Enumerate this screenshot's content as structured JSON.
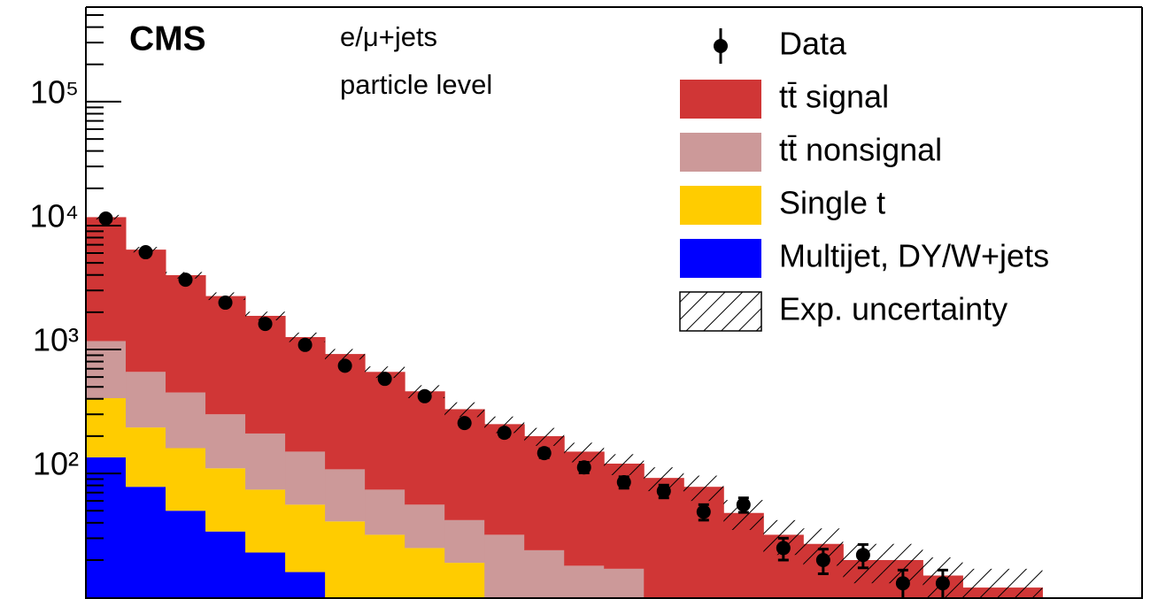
{
  "chart_data": {
    "type": "stacked_histogram",
    "experiment": "CMS",
    "channel": "e/μ+jets",
    "level": "particle level",
    "log_y": true,
    "ylim": [
      9.7,
      580000
    ],
    "yticks": [
      {
        "value": 100,
        "label": "10²"
      },
      {
        "value": 1000,
        "label": "10³"
      },
      {
        "value": 10000,
        "label": "10⁴"
      },
      {
        "value": 100000,
        "label": "10⁵"
      }
    ],
    "minor_yticks": [
      20,
      30,
      40,
      50,
      60,
      70,
      80,
      90,
      200,
      300,
      400,
      500,
      600,
      700,
      800,
      900,
      2000,
      3000,
      4000,
      5000,
      6000,
      7000,
      8000,
      9000,
      20000,
      30000,
      40000,
      50000,
      60000,
      70000,
      80000,
      90000,
      200000,
      300000,
      400000,
      500000
    ],
    "categories": [
      null,
      null,
      null,
      null,
      null,
      null,
      null,
      null,
      null,
      null,
      null,
      null,
      null,
      null,
      null,
      null,
      null,
      null,
      null,
      null,
      null,
      null,
      null,
      null
    ],
    "series": [
      {
        "name": "Multijet, DY/W+jets",
        "color": "#0000ff",
        "values": [
          135,
          78,
          50,
          34,
          23,
          16,
          10,
          null,
          null,
          null,
          null,
          null,
          null,
          null,
          null,
          null,
          null,
          null,
          null,
          null,
          null,
          null,
          null,
          null
        ]
      },
      {
        "name": "Single t",
        "color": "#ffcc00",
        "values": [
          270,
          157,
          110,
          76,
          51,
          40,
          31,
          32,
          25,
          19,
          null,
          null,
          null,
          null,
          null,
          null,
          null,
          null,
          null,
          null,
          null,
          null,
          null,
          null
        ]
      },
      {
        "name": "tt̄ nonsignal",
        "color": "#cc9999",
        "values": [
          765,
          425,
          290,
          190,
          136,
          94,
          67,
          42,
          31,
          23,
          32,
          24,
          18,
          17,
          null,
          null,
          null,
          null,
          null,
          null,
          null,
          null,
          null,
          null
        ]
      },
      {
        "name": "tt̄ signal",
        "color": "#d03636",
        "values": [
          10530,
          5740,
          3530,
          2400,
          1660,
          1110,
          812,
          586,
          404,
          288,
          218,
          176,
          132,
          103,
          92,
          78,
          48,
          32,
          27,
          20,
          20,
          15,
          12,
          12
        ]
      }
    ],
    "uncertainty_name": "Exp. uncertainty",
    "uncertainty": [
      500,
      320,
      240,
      190,
      150,
      110,
      90,
      70,
      55,
      45,
      38,
      33,
      27,
      23,
      20,
      18,
      13,
      10,
      9,
      7,
      7,
      6,
      5,
      5
    ],
    "data_name": "Data",
    "data": [
      11400,
      6100,
      3660,
      2390,
      1610,
      1090,
      740,
      580,
      420,
      255,
      213,
      146,
      112,
      85,
      72,
      49,
      56,
      25,
      20,
      22,
      13,
      13,
      null,
      null
    ],
    "data_errors": [
      107,
      78,
      60,
      49,
      40,
      33,
      27,
      24,
      20,
      16,
      15,
      12,
      11,
      9,
      8.5,
      7,
      7.5,
      5,
      4.5,
      4.7,
      3.6,
      3.6,
      null,
      null
    ]
  }
}
